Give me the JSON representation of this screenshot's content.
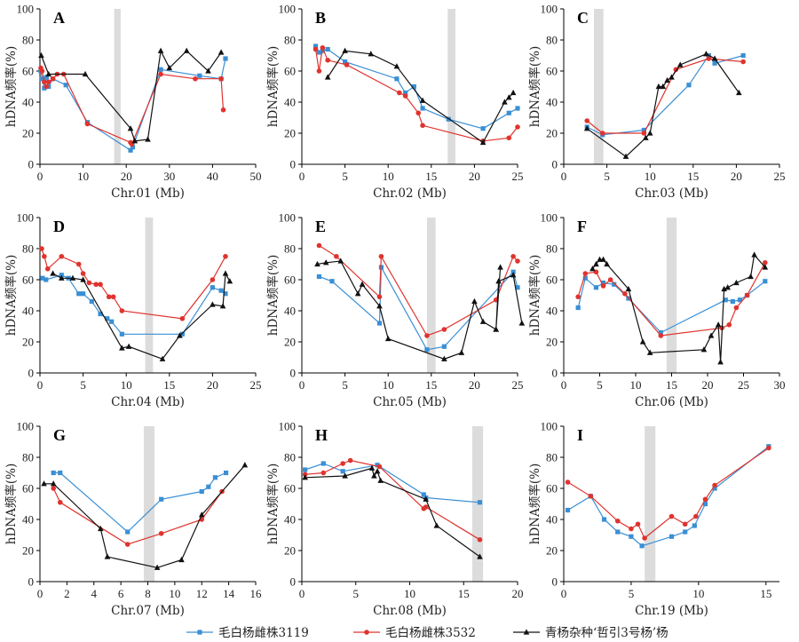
{
  "legend": [
    {
      "label": "毛白杨雌株3119",
      "color": "#3a8fd4",
      "marker": "square"
    },
    {
      "label": "毛白杨雌株3532",
      "color": "#e0332e",
      "marker": "circle"
    },
    {
      "label": "青杨杂种‘哲引3号杨’杨",
      "color": "#111111",
      "marker": "triangle"
    }
  ],
  "chart_data": [
    {
      "type": "line",
      "letter": "A",
      "xlabel": "Chr.01 (Mb)",
      "ylabel": "hDNA频率(%)",
      "xlim": [
        0,
        50
      ],
      "ylim": [
        0,
        100
      ],
      "xticks": [
        0,
        10,
        20,
        30,
        40,
        50
      ],
      "yticks": [
        0,
        20,
        40,
        60,
        80,
        100
      ],
      "highlight": [
        17.2,
        18.7
      ],
      "series": [
        {
          "name": "毛白杨雌株3119",
          "x": [
            0.2,
            0.5,
            1.0,
            1.5,
            2.0,
            3.0,
            6.0,
            11.0,
            21.0,
            21.5,
            28.0,
            37.0,
            42.0,
            43.0
          ],
          "y": [
            60,
            55,
            49,
            56,
            50,
            55,
            51,
            27,
            9,
            11,
            61,
            57,
            55,
            68
          ]
        },
        {
          "name": "毛白杨雌株3532",
          "x": [
            0.2,
            0.5,
            1.0,
            1.5,
            2.0,
            3.0,
            4.0,
            5.5,
            11.0,
            21.0,
            21.3,
            28.0,
            36.0,
            42.0,
            42.5
          ],
          "y": [
            62,
            60,
            53,
            50,
            53,
            55,
            58,
            58,
            26,
            14,
            13,
            58,
            55,
            55,
            35
          ]
        },
        {
          "name": "青杨杂种‘哲引3号杨’杨",
          "x": [
            0.3,
            2.0,
            10.5,
            21.0,
            22.0,
            25.0,
            28.0,
            30.0,
            34.0,
            39.0,
            42.0
          ],
          "y": [
            70,
            58,
            58,
            23,
            15,
            16,
            73,
            62,
            73,
            60,
            72
          ]
        }
      ]
    },
    {
      "type": "line",
      "letter": "B",
      "xlabel": "Chr.02 (Mb)",
      "ylabel": "hDNA频率(%)",
      "xlim": [
        0,
        25
      ],
      "ylim": [
        0,
        100
      ],
      "xticks": [
        0,
        5,
        10,
        15,
        20,
        25
      ],
      "yticks": [
        0,
        20,
        40,
        60,
        80,
        100
      ],
      "highlight": [
        16.9,
        17.8
      ],
      "series": [
        {
          "name": "毛白杨雌株3119",
          "x": [
            1.6,
            2.0,
            2.4,
            3.0,
            5.0,
            11.0,
            12.0,
            13.0,
            14.0,
            17.0,
            21.0,
            24.0,
            25.0
          ],
          "y": [
            76,
            72,
            73,
            74,
            66,
            55,
            46,
            50,
            36,
            29,
            23,
            33,
            36
          ]
        },
        {
          "name": "毛白杨雌株3532",
          "x": [
            1.6,
            2.0,
            2.4,
            3.0,
            5.2,
            11.3,
            12.0,
            13.5,
            14.0,
            21.0,
            24.0,
            25.0
          ],
          "y": [
            74,
            60,
            75,
            67,
            64,
            46,
            44,
            33,
            25,
            15,
            17,
            24
          ]
        },
        {
          "name": "青杨杂种‘哲引3号杨’杨",
          "x": [
            3.0,
            5.0,
            8.0,
            11.0,
            14.0,
            21.0,
            23.5,
            24.0,
            24.5
          ],
          "y": [
            56,
            73,
            71,
            63,
            41,
            14,
            40,
            43,
            46
          ]
        }
      ]
    },
    {
      "type": "line",
      "letter": "C",
      "xlabel": "Chr.03 (Mb)",
      "ylabel": "hDNA频率(%)",
      "xlim": [
        0,
        25
      ],
      "ylim": [
        0,
        100
      ],
      "xticks": [
        0,
        5,
        10,
        15,
        20,
        25
      ],
      "yticks": [
        0,
        20,
        40,
        60,
        80,
        100
      ],
      "highlight": [
        3.5,
        4.6
      ],
      "series": [
        {
          "name": "毛白杨雌株3119",
          "x": [
            2.7,
            4.5,
            9.3,
            14.5,
            16.8,
            17.5,
            20.8
          ],
          "y": [
            24,
            19,
            22,
            51,
            70,
            65,
            70
          ]
        },
        {
          "name": "毛白杨雌株3532",
          "x": [
            2.7,
            4.5,
            9.3,
            13.0,
            16.8,
            20.8
          ],
          "y": [
            28,
            20,
            20,
            61,
            68,
            66
          ]
        },
        {
          "name": "青杨杂种‘哲引3号杨’杨",
          "x": [
            2.7,
            7.2,
            9.5,
            10.0,
            11.0,
            11.5,
            12.0,
            12.5,
            13.5,
            16.5,
            17.5,
            20.3
          ],
          "y": [
            23,
            5,
            17,
            20,
            50,
            50,
            54,
            56,
            64,
            71,
            68,
            46
          ]
        }
      ]
    },
    {
      "type": "line",
      "letter": "D",
      "xlabel": "Chr.04 (Mb)",
      "ylabel": "hDNA频率(%)",
      "xlim": [
        0,
        25
      ],
      "ylim": [
        0,
        100
      ],
      "xticks": [
        0,
        5,
        10,
        15,
        20,
        25
      ],
      "yticks": [
        0,
        20,
        40,
        60,
        80,
        100
      ],
      "highlight": [
        12.2,
        13.1
      ],
      "series": [
        {
          "name": "毛白杨雌株3119",
          "x": [
            0.3,
            0.7,
            2.5,
            3.3,
            4.5,
            5.0,
            6.0,
            7.0,
            7.8,
            8.3,
            9.5,
            16.5,
            20.0,
            21.0,
            21.5
          ],
          "y": [
            61,
            60,
            63,
            61,
            51,
            51,
            46,
            38,
            35,
            33,
            25,
            25,
            55,
            53,
            51
          ]
        },
        {
          "name": "毛白杨雌株3532",
          "x": [
            0.2,
            0.5,
            0.9,
            2.5,
            4.5,
            5.0,
            5.7,
            6.5,
            7.0,
            8.0,
            8.5,
            9.5,
            16.5,
            20.0,
            21.5
          ],
          "y": [
            80,
            75,
            67,
            75,
            70,
            64,
            58,
            57,
            57,
            49,
            49,
            40,
            35,
            60,
            75
          ]
        },
        {
          "name": "青杨杂种‘哲引3号杨’杨",
          "x": [
            1.5,
            2.5,
            3.8,
            5.0,
            9.5,
            10.3,
            14.2,
            16.2,
            20.0,
            21.2,
            21.5,
            22.0
          ],
          "y": [
            64,
            61,
            61,
            60,
            16,
            17,
            9,
            24,
            44,
            43,
            64,
            59
          ]
        }
      ]
    },
    {
      "type": "line",
      "letter": "E",
      "xlabel": "Chr.05 (Mb)",
      "ylabel": "hDNA频率(%)",
      "xlim": [
        0,
        25
      ],
      "ylim": [
        0,
        100
      ],
      "xticks": [
        0,
        5,
        10,
        15,
        20,
        25
      ],
      "yticks": [
        0,
        20,
        40,
        60,
        80,
        100
      ],
      "highlight": [
        14.5,
        15.5
      ],
      "series": [
        {
          "name": "毛白杨雌株3119",
          "x": [
            2.0,
            3.5,
            9.0,
            9.2,
            14.5,
            16.5,
            24.5,
            25.0
          ],
          "y": [
            62,
            59,
            32,
            68,
            15,
            17,
            65,
            55
          ]
        },
        {
          "name": "毛白杨雌株3532",
          "x": [
            2.0,
            4.0,
            9.0,
            9.2,
            14.5,
            16.5,
            22.5,
            24.5,
            25.0
          ],
          "y": [
            82,
            75,
            49,
            75,
            24,
            28,
            47,
            75,
            72
          ]
        },
        {
          "name": "青杨杂种‘哲引3号杨’杨",
          "x": [
            1.8,
            2.8,
            4.5,
            6.5,
            7.0,
            9.0,
            10.0,
            16.5,
            18.5,
            20.0,
            21.0,
            22.5,
            23.0,
            22.5,
            22.8,
            24.5,
            25.5
          ],
          "y": [
            70,
            71,
            72,
            51,
            57,
            43,
            22,
            9,
            13,
            46,
            33,
            28,
            68,
            28,
            59,
            63,
            32
          ]
        }
      ]
    },
    {
      "type": "line",
      "letter": "F",
      "xlabel": "Chr.06 (Mb)",
      "ylabel": "hDNA频率(%)",
      "xlim": [
        0,
        30
      ],
      "ylim": [
        0,
        100
      ],
      "xticks": [
        0,
        5,
        10,
        15,
        20,
        25,
        30
      ],
      "yticks": [
        0,
        20,
        40,
        60,
        80,
        100
      ],
      "highlight": [
        14.3,
        15.7
      ],
      "series": [
        {
          "name": "毛白杨雌株3119",
          "x": [
            2.0,
            3.0,
            4.5,
            5.5,
            7.0,
            9.0,
            13.5,
            22.5,
            23.5,
            24.5,
            25.5,
            28.0
          ],
          "y": [
            42,
            61,
            55,
            58,
            57,
            48,
            26,
            47,
            46,
            47,
            50,
            59
          ]
        },
        {
          "name": "毛白杨雌株3532",
          "x": [
            2.0,
            3.0,
            4.5,
            5.5,
            6.5,
            8.5,
            13.5,
            22.0,
            23.0,
            24.0,
            25.5,
            28.0
          ],
          "y": [
            49,
            64,
            65,
            56,
            60,
            51,
            24,
            29,
            31,
            42,
            50,
            71
          ]
        },
        {
          "name": "青杨杂种‘哲引3号杨’杨",
          "x": [
            4.0,
            4.5,
            5.0,
            5.5,
            6.0,
            9.0,
            11.0,
            12.0,
            19.5,
            20.5,
            21.5,
            21.8,
            22.3,
            22.8,
            24.0,
            26.0,
            26.5,
            28.0
          ],
          "y": [
            67,
            70,
            73,
            73,
            70,
            54,
            20,
            13,
            15,
            24,
            31,
            7,
            54,
            55,
            58,
            62,
            76,
            68
          ]
        }
      ]
    },
    {
      "type": "line",
      "letter": "G",
      "xlabel": "Chr.07 (Mb)",
      "ylabel": "hDNA频率(%)",
      "xlim": [
        0,
        16
      ],
      "ylim": [
        0,
        100
      ],
      "xticks": [
        0,
        2,
        4,
        6,
        8,
        10,
        12,
        14,
        16
      ],
      "yticks": [
        0,
        20,
        40,
        60,
        80,
        100
      ],
      "highlight": [
        7.7,
        8.5
      ],
      "series": [
        {
          "name": "毛白杨雌株3119",
          "x": [
            1.0,
            1.5,
            6.5,
            9.0,
            12.0,
            12.5,
            13.0,
            13.8
          ],
          "y": [
            70,
            70,
            32,
            53,
            58,
            61,
            67,
            70
          ]
        },
        {
          "name": "毛白杨雌株3532",
          "x": [
            1.0,
            1.5,
            6.5,
            9.0,
            12.0,
            13.5
          ],
          "y": [
            60,
            51,
            24,
            31,
            40,
            58
          ]
        },
        {
          "name": "青杨杂种‘哲引3号杨’杨",
          "x": [
            0.3,
            1.0,
            4.5,
            5.0,
            8.7,
            10.5,
            12.0,
            15.2
          ],
          "y": [
            63,
            63,
            34,
            16,
            9,
            14,
            43,
            75
          ]
        }
      ]
    },
    {
      "type": "line",
      "letter": "H",
      "xlabel": "Chr.08 (Mb)",
      "ylabel": "hDNA频率(%)",
      "xlim": [
        0,
        20
      ],
      "ylim": [
        0,
        100
      ],
      "xticks": [
        0,
        5,
        10,
        15,
        20
      ],
      "yticks": [
        0,
        20,
        40,
        60,
        80,
        100
      ],
      "highlight": [
        15.8,
        16.8
      ],
      "series": [
        {
          "name": "毛白杨雌株3119",
          "x": [
            0.3,
            2.0,
            3.8,
            7.0,
            11.3,
            11.5,
            16.5
          ],
          "y": [
            72,
            76,
            71,
            75,
            56,
            54,
            51
          ]
        },
        {
          "name": "毛白杨雌株3532",
          "x": [
            0.3,
            2.0,
            3.8,
            4.5,
            7.2,
            11.3,
            11.5,
            16.5
          ],
          "y": [
            69,
            70,
            76,
            78,
            74,
            47,
            48,
            27
          ]
        },
        {
          "name": "青杨杂种‘哲引3号杨’杨",
          "x": [
            0.3,
            4.0,
            6.5,
            6.7,
            7.0,
            7.3,
            11.5,
            12.5,
            16.5
          ],
          "y": [
            67,
            68,
            73,
            68,
            71,
            65,
            53,
            36,
            16
          ]
        }
      ]
    },
    {
      "type": "line",
      "letter": "I",
      "xlabel": "Chr.19 (Mb)",
      "ylabel": "hDNA频率(%)",
      "xlim": [
        0,
        16
      ],
      "ylim": [
        0,
        100
      ],
      "xticks": [
        0,
        5,
        10,
        15
      ],
      "yticks": [
        0,
        20,
        40,
        60,
        80,
        100
      ],
      "highlight": [
        6.0,
        6.8
      ],
      "series": [
        {
          "name": "毛白杨雌株3119",
          "x": [
            0.3,
            2.0,
            3.0,
            4.0,
            5.0,
            5.8,
            8.0,
            9.0,
            9.7,
            10.5,
            11.2,
            15.2
          ],
          "y": [
            46,
            55,
            40,
            32,
            29,
            23,
            29,
            32,
            36,
            50,
            60,
            87
          ]
        },
        {
          "name": "毛白杨雌株3532",
          "x": [
            0.3,
            2.0,
            4.0,
            5.0,
            5.5,
            6.0,
            8.0,
            9.0,
            9.8,
            10.5,
            11.2,
            15.2
          ],
          "y": [
            64,
            55,
            39,
            34,
            37,
            28,
            42,
            37,
            42,
            53,
            62,
            86
          ]
        }
      ]
    }
  ]
}
